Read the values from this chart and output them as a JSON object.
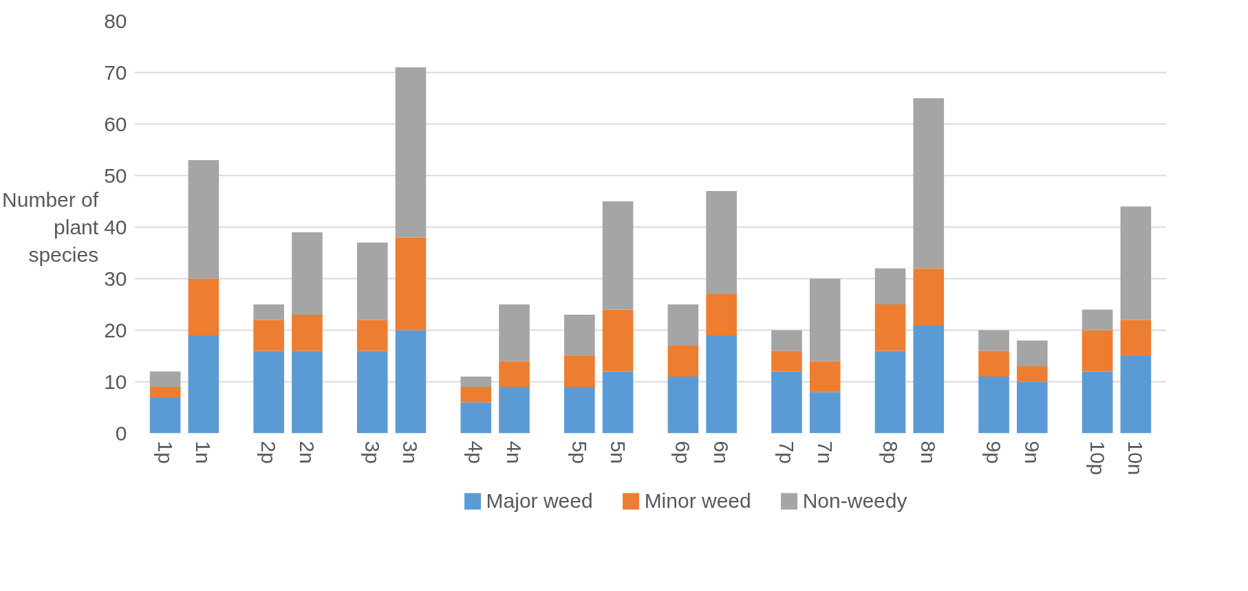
{
  "chart_data": {
    "type": "bar",
    "stacked": true,
    "ylabel": "Number of plant species",
    "categories": [
      "1p",
      "1n",
      "2p",
      "2n",
      "3p",
      "3n",
      "4p",
      "4n",
      "5p",
      "5n",
      "6p",
      "6n",
      "7p",
      "7n",
      "8p",
      "8n",
      "9p",
      "9n",
      "10p",
      "10n"
    ],
    "series": [
      {
        "name": "Major weed",
        "color": "#5b9bd5",
        "values": [
          7,
          19,
          16,
          16,
          16,
          20,
          6,
          9,
          9,
          12,
          11,
          19,
          12,
          8,
          16,
          21,
          11,
          10,
          12,
          15
        ]
      },
      {
        "name": "Minor weed",
        "color": "#ed7d31",
        "values": [
          2,
          11,
          6,
          7,
          6,
          18,
          3,
          5,
          6,
          12,
          6,
          8,
          4,
          6,
          9,
          11,
          5,
          3,
          8,
          7
        ]
      },
      {
        "name": "Non-weedy",
        "color": "#a5a5a5",
        "values": [
          3,
          23,
          3,
          16,
          15,
          33,
          2,
          11,
          8,
          21,
          8,
          20,
          4,
          16,
          7,
          33,
          4,
          5,
          4,
          22
        ]
      }
    ],
    "ylim": [
      0,
      80
    ],
    "yticks": [
      0,
      10,
      20,
      30,
      40,
      50,
      60,
      70,
      80
    ],
    "grid": "y",
    "legend": "bottom"
  }
}
